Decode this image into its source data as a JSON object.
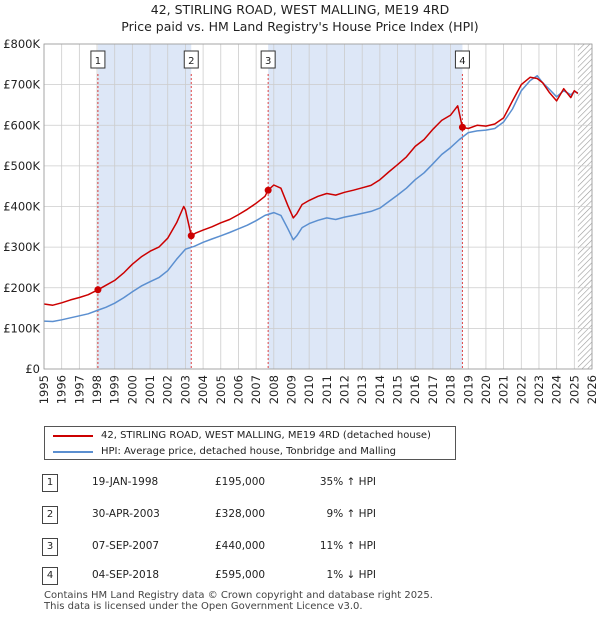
{
  "title_line1": "42, STIRLING ROAD, WEST MALLING, ME19 4RD",
  "title_line2": "Price paid vs. HM Land Registry's House Price Index (HPI)",
  "colors": {
    "property": "#cc0000",
    "hpi": "#5b8fd0",
    "shade": "#dde7f7",
    "marker_line": "#dd4444",
    "grid": "#cccccc"
  },
  "chart_data": {
    "type": "line",
    "title": "42, STIRLING ROAD, WEST MALLING, ME19 4RD — Price paid vs. HM Land Registry's House Price Index (HPI)",
    "xlim": [
      1995,
      2026
    ],
    "ylim": [
      0,
      800000
    ],
    "x_ticks": [
      1995,
      1996,
      1997,
      1998,
      1999,
      2000,
      2001,
      2002,
      2003,
      2004,
      2005,
      2006,
      2007,
      2008,
      2009,
      2010,
      2011,
      2012,
      2013,
      2014,
      2015,
      2016,
      2017,
      2018,
      2019,
      2020,
      2021,
      2022,
      2023,
      2024,
      2025,
      2026
    ],
    "y_ticks": [
      {
        "value": 0,
        "label": "£0"
      },
      {
        "value": 100000,
        "label": "£100K"
      },
      {
        "value": 200000,
        "label": "£200K"
      },
      {
        "value": 300000,
        "label": "£300K"
      },
      {
        "value": 400000,
        "label": "£400K"
      },
      {
        "value": 500000,
        "label": "£500K"
      },
      {
        "value": 600000,
        "label": "£600K"
      },
      {
        "value": 700000,
        "label": "£700K"
      },
      {
        "value": 800000,
        "label": "£800K"
      }
    ],
    "future_from": 2025.2,
    "series": [
      {
        "name": "42, STIRLING ROAD, WEST MALLING, ME19 4RD (detached house)",
        "color": "#cc0000",
        "x": [
          1995.0,
          1995.5,
          1996.0,
          1996.5,
          1997.0,
          1997.5,
          1998.05,
          1998.5,
          1999.0,
          1999.5,
          2000.0,
          2000.5,
          2001.0,
          2001.5,
          2002.0,
          2002.5,
          2002.9,
          2003.0,
          2003.33,
          2003.6,
          2004.0,
          2004.5,
          2005.0,
          2005.5,
          2006.0,
          2006.5,
          2007.0,
          2007.5,
          2007.68,
          2008.0,
          2008.4,
          2008.8,
          2009.1,
          2009.3,
          2009.6,
          2010.0,
          2010.5,
          2011.0,
          2011.5,
          2012.0,
          2012.5,
          2013.0,
          2013.5,
          2014.0,
          2014.5,
          2015.0,
          2015.5,
          2016.0,
          2016.5,
          2017.0,
          2017.5,
          2018.0,
          2018.4,
          2018.67,
          2019.0,
          2019.5,
          2020.0,
          2020.5,
          2021.0,
          2021.5,
          2022.0,
          2022.5,
          2022.9,
          2023.2,
          2023.6,
          2024.0,
          2024.4,
          2024.8,
          2025.0,
          2025.2
        ],
        "y": [
          160000,
          157000,
          163000,
          170000,
          176000,
          183000,
          195000,
          206000,
          218000,
          236000,
          258000,
          276000,
          290000,
          300000,
          322000,
          360000,
          400000,
          392000,
          328000,
          335000,
          342000,
          350000,
          360000,
          368000,
          380000,
          393000,
          408000,
          425000,
          440000,
          453000,
          445000,
          402000,
          372000,
          382000,
          405000,
          415000,
          425000,
          432000,
          428000,
          435000,
          440000,
          446000,
          452000,
          466000,
          485000,
          503000,
          522000,
          548000,
          565000,
          590000,
          612000,
          625000,
          648000,
          595000,
          592000,
          600000,
          598000,
          603000,
          618000,
          660000,
          700000,
          718000,
          715000,
          705000,
          680000,
          660000,
          690000,
          668000,
          685000,
          678000
        ]
      },
      {
        "name": "HPI: Average price, detached house, Tonbridge and Malling",
        "color": "#5b8fd0",
        "x": [
          1995.0,
          1995.5,
          1996.0,
          1996.5,
          1997.0,
          1997.5,
          1998.0,
          1998.5,
          1999.0,
          1999.5,
          2000.0,
          2000.5,
          2001.0,
          2001.5,
          2002.0,
          2002.5,
          2003.0,
          2003.5,
          2004.0,
          2004.5,
          2005.0,
          2005.5,
          2006.0,
          2006.5,
          2007.0,
          2007.5,
          2008.0,
          2008.4,
          2008.8,
          2009.1,
          2009.3,
          2009.6,
          2010.0,
          2010.5,
          2011.0,
          2011.5,
          2012.0,
          2012.5,
          2013.0,
          2013.5,
          2014.0,
          2014.5,
          2015.0,
          2015.5,
          2016.0,
          2016.5,
          2017.0,
          2017.5,
          2018.0,
          2018.5,
          2019.0,
          2019.5,
          2020.0,
          2020.5,
          2021.0,
          2021.5,
          2022.0,
          2022.5,
          2022.9,
          2023.2,
          2023.6,
          2024.0,
          2024.4,
          2024.8,
          2025.0,
          2025.2
        ],
        "y": [
          118000,
          117000,
          121000,
          126000,
          131000,
          136000,
          144000,
          152000,
          162000,
          175000,
          190000,
          204000,
          215000,
          225000,
          242000,
          270000,
          295000,
          302000,
          312000,
          320000,
          328000,
          336000,
          345000,
          354000,
          365000,
          378000,
          385000,
          378000,
          345000,
          318000,
          328000,
          348000,
          358000,
          366000,
          372000,
          368000,
          374000,
          378000,
          383000,
          388000,
          396000,
          412000,
          428000,
          445000,
          466000,
          483000,
          505000,
          528000,
          545000,
          565000,
          582000,
          586000,
          588000,
          592000,
          608000,
          640000,
          685000,
          710000,
          722000,
          705000,
          688000,
          670000,
          685000,
          675000,
          683000,
          680000
        ]
      }
    ],
    "transactions": [
      {
        "marker": "1",
        "year": 1998.05,
        "price_value": 195000
      },
      {
        "marker": "2",
        "year": 2003.33,
        "price_value": 328000
      },
      {
        "marker": "3",
        "year": 2007.68,
        "price_value": 440000
      },
      {
        "marker": "4",
        "year": 2018.67,
        "price_value": 595000
      }
    ],
    "shaded_spans": [
      [
        1998.05,
        2003.33
      ],
      [
        2007.68,
        2018.67
      ]
    ]
  },
  "legend": {
    "property": "42, STIRLING ROAD, WEST MALLING, ME19 4RD (detached house)",
    "hpi": "HPI: Average price, detached house, Tonbridge and Malling"
  },
  "table": [
    {
      "num": "1",
      "date": "19-JAN-1998",
      "price": "£195,000",
      "hpi": "35% ↑ HPI"
    },
    {
      "num": "2",
      "date": "30-APR-2003",
      "price": "£328,000",
      "hpi": "9% ↑ HPI"
    },
    {
      "num": "3",
      "date": "07-SEP-2007",
      "price": "£440,000",
      "hpi": "11% ↑ HPI"
    },
    {
      "num": "4",
      "date": "04-SEP-2018",
      "price": "£595,000",
      "hpi": "1% ↓ HPI"
    }
  ],
  "footer_line1": "Contains HM Land Registry data © Crown copyright and database right 2025.",
  "footer_line2": "This data is licensed under the Open Government Licence v3.0."
}
